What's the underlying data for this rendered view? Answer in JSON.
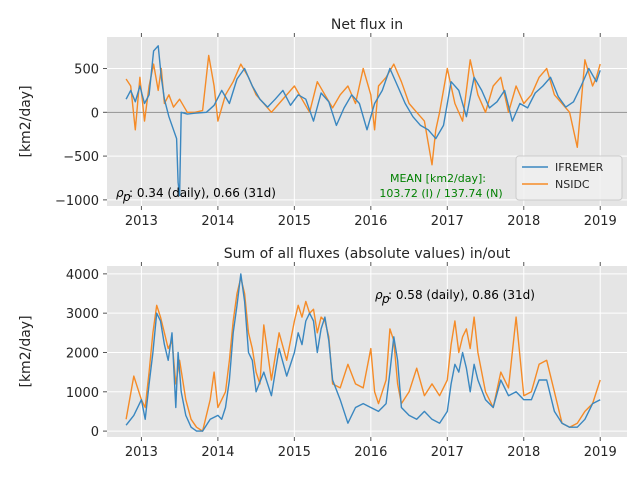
{
  "colors": {
    "s1": "#3a87c0",
    "s2": "#f58b27",
    "bg": "#e5e5e5",
    "grid": "#ffffff",
    "zero": "#7f7f7f"
  },
  "chart_data": [
    {
      "type": "line",
      "title": "Net flux in",
      "ylabel": "[km2/day]",
      "xlim": [
        2012.55,
        2019.35
      ],
      "ylim": [
        -1070,
        860
      ],
      "xticks": [
        2013,
        2014,
        2015,
        2016,
        2017,
        2018,
        2019
      ],
      "yticks": [
        -1000,
        -500,
        0,
        500
      ],
      "ytick_labels": [
        "−1000",
        "−500",
        "0",
        "500"
      ],
      "grid": true,
      "legend": "lower-right",
      "annotation_prefix": "ρ",
      "annotation_sub": "p",
      "annotation": ": 0.34 (daily), 0.66 (31d)",
      "mean_label": "MEAN [km2/day]:",
      "mean_values": "103.72 (I) /  137.74 (N)",
      "series": [
        {
          "name": "IFREMER",
          "x": [
            2012.8,
            2012.86,
            2012.92,
            2012.98,
            2013.04,
            2013.1,
            2013.16,
            2013.22,
            2013.26,
            2013.3,
            2013.36,
            2013.42,
            2013.46,
            2013.48,
            2013.5,
            2013.52,
            2013.6,
            2013.7,
            2013.85,
            2013.95,
            2014.05,
            2014.15,
            2014.25,
            2014.35,
            2014.45,
            2014.55,
            2014.65,
            2014.75,
            2014.85,
            2014.95,
            2015.05,
            2015.15,
            2015.25,
            2015.35,
            2015.45,
            2015.55,
            2015.65,
            2015.75,
            2015.85,
            2015.95,
            2016.05,
            2016.15,
            2016.25,
            2016.35,
            2016.45,
            2016.55,
            2016.65,
            2016.75,
            2016.85,
            2016.95,
            2017.05,
            2017.15,
            2017.25,
            2017.35,
            2017.45,
            2017.55,
            2017.65,
            2017.75,
            2017.85,
            2017.95,
            2018.05,
            2018.15,
            2018.25,
            2018.35,
            2018.45,
            2018.55,
            2018.65,
            2018.75,
            2018.85,
            2018.95,
            2019.0
          ],
          "y": [
            150,
            250,
            120,
            300,
            100,
            200,
            700,
            760,
            400,
            150,
            -50,
            -200,
            -300,
            -800,
            -950,
            0,
            -20,
            -10,
            0,
            80,
            250,
            100,
            380,
            500,
            300,
            150,
            60,
            150,
            250,
            80,
            200,
            150,
            -100,
            220,
            120,
            -150,
            50,
            200,
            100,
            -200,
            100,
            250,
            500,
            300,
            100,
            -50,
            -150,
            -200,
            -300,
            -150,
            350,
            250,
            -50,
            400,
            250,
            50,
            120,
            250,
            -100,
            100,
            50,
            220,
            300,
            400,
            180,
            60,
            120,
            300,
            500,
            350,
            480
          ]
        },
        {
          "name": "NSIDC",
          "x": [
            2012.8,
            2012.86,
            2012.92,
            2012.98,
            2013.04,
            2013.1,
            2013.16,
            2013.22,
            2013.26,
            2013.3,
            2013.36,
            2013.42,
            2013.5,
            2013.6,
            2013.7,
            2013.8,
            2013.88,
            2013.95,
            2014.0,
            2014.1,
            2014.2,
            2014.3,
            2014.4,
            2014.5,
            2014.6,
            2014.7,
            2014.8,
            2014.9,
            2015.0,
            2015.1,
            2015.2,
            2015.3,
            2015.4,
            2015.5,
            2015.6,
            2015.7,
            2015.8,
            2015.9,
            2016.0,
            2016.05,
            2016.1,
            2016.2,
            2016.3,
            2016.4,
            2016.5,
            2016.6,
            2016.7,
            2016.8,
            2016.85,
            2016.9,
            2017.0,
            2017.1,
            2017.2,
            2017.3,
            2017.4,
            2017.5,
            2017.6,
            2017.7,
            2017.8,
            2017.9,
            2018.0,
            2018.1,
            2018.2,
            2018.3,
            2018.4,
            2018.5,
            2018.6,
            2018.7,
            2018.8,
            2018.9,
            2018.95,
            2019.0
          ],
          "y": [
            380,
            300,
            -200,
            400,
            -100,
            300,
            550,
            250,
            500,
            100,
            200,
            60,
            150,
            0,
            0,
            20,
            650,
            300,
            -100,
            200,
            350,
            550,
            400,
            200,
            100,
            0,
            100,
            200,
            300,
            150,
            0,
            350,
            200,
            50,
            200,
            300,
            100,
            500,
            200,
            -200,
            300,
            400,
            550,
            350,
            100,
            0,
            -100,
            -600,
            -200,
            0,
            500,
            100,
            -100,
            600,
            200,
            0,
            300,
            400,
            0,
            300,
            100,
            200,
            400,
            500,
            200,
            100,
            0,
            -400,
            600,
            300,
            400,
            550
          ]
        }
      ]
    },
    {
      "type": "line",
      "title": "Sum of all fluxes (absolute values) in/out",
      "ylabel": "[km2/day]",
      "xlim": [
        2012.55,
        2019.35
      ],
      "ylim": [
        -150,
        4200
      ],
      "xticks": [
        2013,
        2014,
        2015,
        2016,
        2017,
        2018,
        2019
      ],
      "yticks": [
        0,
        1000,
        2000,
        3000,
        4000
      ],
      "ytick_labels": [
        "0",
        "1000",
        "2000",
        "3000",
        "4000"
      ],
      "grid": true,
      "annotation_prefix": "ρ",
      "annotation_sub": "p",
      "annotation": ": 0.58 (daily), 0.86 (31d)",
      "series": [
        {
          "name": "IFREMER",
          "x": [
            2012.8,
            2012.9,
            2013.0,
            2013.05,
            2013.1,
            2013.15,
            2013.2,
            2013.25,
            2013.3,
            2013.35,
            2013.4,
            2013.45,
            2013.48,
            2013.52,
            2013.58,
            2013.65,
            2013.72,
            2013.8,
            2013.9,
            2014.0,
            2014.05,
            2014.1,
            2014.15,
            2014.2,
            2014.25,
            2014.3,
            2014.35,
            2014.4,
            2014.45,
            2014.5,
            2014.6,
            2014.7,
            2014.8,
            2014.9,
            2015.0,
            2015.05,
            2015.1,
            2015.15,
            2015.2,
            2015.25,
            2015.3,
            2015.35,
            2015.4,
            2015.45,
            2015.5,
            2015.6,
            2015.7,
            2015.8,
            2015.9,
            2016.0,
            2016.1,
            2016.2,
            2016.25,
            2016.3,
            2016.35,
            2016.4,
            2016.5,
            2016.6,
            2016.7,
            2016.8,
            2016.9,
            2017.0,
            2017.05,
            2017.1,
            2017.15,
            2017.2,
            2017.25,
            2017.3,
            2017.35,
            2017.4,
            2017.5,
            2017.6,
            2017.7,
            2017.8,
            2017.9,
            2018.0,
            2018.1,
            2018.2,
            2018.3,
            2018.4,
            2018.5,
            2018.6,
            2018.7,
            2018.8,
            2018.9,
            2019.0
          ],
          "y": [
            150,
            400,
            800,
            300,
            1200,
            2000,
            3000,
            2800,
            2200,
            1800,
            2500,
            600,
            2000,
            1000,
            400,
            100,
            0,
            0,
            300,
            400,
            300,
            600,
            1300,
            2500,
            3200,
            4000,
            3300,
            2000,
            1800,
            1000,
            1500,
            900,
            2100,
            1400,
            2000,
            2500,
            2200,
            2800,
            3000,
            2800,
            2000,
            2600,
            2900,
            2300,
            1300,
            800,
            200,
            600,
            700,
            600,
            500,
            700,
            1500,
            2400,
            1800,
            600,
            400,
            300,
            500,
            300,
            200,
            500,
            1200,
            1700,
            1500,
            2000,
            1600,
            1000,
            1700,
            1300,
            800,
            600,
            1300,
            900,
            1000,
            800,
            800,
            1300,
            1300,
            500,
            200,
            100,
            100,
            300,
            700,
            800
          ]
        },
        {
          "name": "NSIDC",
          "x": [
            2012.8,
            2012.9,
            2013.0,
            2013.05,
            2013.1,
            2013.15,
            2013.2,
            2013.25,
            2013.3,
            2013.35,
            2013.4,
            2013.45,
            2013.5,
            2013.58,
            2013.65,
            2013.72,
            2013.8,
            2013.9,
            2013.95,
            2014.0,
            2014.05,
            2014.1,
            2014.15,
            2014.2,
            2014.25,
            2014.3,
            2014.35,
            2014.4,
            2014.45,
            2014.5,
            2014.55,
            2014.6,
            2014.7,
            2014.8,
            2014.9,
            2015.0,
            2015.05,
            2015.1,
            2015.15,
            2015.2,
            2015.25,
            2015.3,
            2015.35,
            2015.4,
            2015.45,
            2015.5,
            2015.6,
            2015.7,
            2015.8,
            2015.9,
            2016.0,
            2016.05,
            2016.1,
            2016.2,
            2016.25,
            2016.3,
            2016.35,
            2016.4,
            2016.5,
            2016.6,
            2016.7,
            2016.8,
            2016.9,
            2017.0,
            2017.05,
            2017.1,
            2017.15,
            2017.2,
            2017.25,
            2017.3,
            2017.35,
            2017.4,
            2017.5,
            2017.6,
            2017.7,
            2017.8,
            2017.9,
            2018.0,
            2018.1,
            2018.2,
            2018.3,
            2018.4,
            2018.5,
            2018.6,
            2018.7,
            2018.8,
            2018.9,
            2019.0
          ],
          "y": [
            300,
            1400,
            800,
            600,
            1500,
            2500,
            3200,
            2900,
            2500,
            2100,
            2300,
            1200,
            1800,
            800,
            300,
            100,
            0,
            800,
            1500,
            600,
            800,
            1000,
            1800,
            2800,
            3500,
            3900,
            3500,
            2500,
            2100,
            1500,
            1200,
            2700,
            1300,
            2500,
            1800,
            2800,
            3200,
            2900,
            3300,
            3000,
            3100,
            2500,
            2900,
            2800,
            2400,
            1200,
            1100,
            1700,
            1200,
            1100,
            2100,
            1000,
            700,
            1300,
            2600,
            2300,
            1200,
            700,
            1000,
            1600,
            900,
            1200,
            900,
            1300,
            2200,
            2800,
            2000,
            2400,
            2600,
            2100,
            2900,
            2000,
            1000,
            600,
            1500,
            1100,
            2900,
            900,
            1000,
            1700,
            1800,
            1000,
            200,
            100,
            200,
            500,
            700,
            1300
          ]
        }
      ]
    }
  ]
}
